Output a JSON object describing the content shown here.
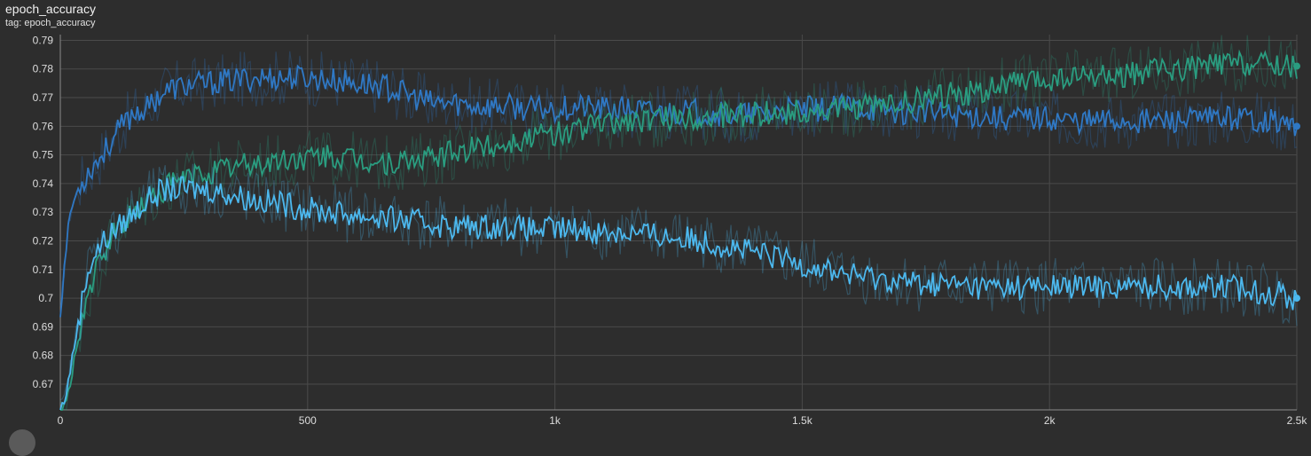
{
  "header": {
    "title": "epoch_accuracy",
    "subtitle": "tag: epoch_accuracy"
  },
  "chart_data": {
    "type": "line",
    "title": "epoch_accuracy",
    "subtitle": "tag: epoch_accuracy",
    "xlabel": "",
    "ylabel": "",
    "xlim": [
      0,
      2500
    ],
    "ylim": [
      0.661,
      0.792
    ],
    "x_ticks": [
      0,
      500,
      1000,
      1500,
      2000,
      2500
    ],
    "x_tick_labels": [
      "0",
      "500",
      "1k",
      "1.5k",
      "2k",
      "2.5k"
    ],
    "y_ticks": [
      0.67,
      0.68,
      0.69,
      0.7,
      0.71,
      0.72,
      0.73,
      0.74,
      0.75,
      0.76,
      0.77,
      0.78,
      0.79
    ],
    "y_tick_labels": [
      "0.67",
      "0.68",
      "0.69",
      "0.7",
      "0.71",
      "0.72",
      "0.73",
      "0.74",
      "0.75",
      "0.76",
      "0.77",
      "0.78",
      "0.79"
    ],
    "grid": true,
    "legend": "none",
    "series": [
      {
        "color": "#2f78c4",
        "x": [
          0,
          10,
          20,
          30,
          40,
          50,
          60,
          80,
          100,
          125,
          150,
          175,
          200,
          225,
          250,
          300,
          350,
          400,
          450,
          500,
          550,
          600,
          650,
          700,
          750,
          800,
          850,
          900,
          950,
          1000,
          1050,
          1100,
          1150,
          1200,
          1250,
          1300,
          1350,
          1400,
          1450,
          1500,
          1550,
          1600,
          1650,
          1700,
          1750,
          1800,
          1850,
          1900,
          1950,
          2000,
          2050,
          2100,
          2150,
          2200,
          2250,
          2300,
          2350,
          2400,
          2450,
          2500
        ],
        "y": [
          0.694,
          0.715,
          0.73,
          0.735,
          0.74,
          0.742,
          0.745,
          0.749,
          0.754,
          0.76,
          0.765,
          0.766,
          0.771,
          0.773,
          0.774,
          0.775,
          0.776,
          0.777,
          0.777,
          0.777,
          0.776,
          0.775,
          0.774,
          0.771,
          0.768,
          0.768,
          0.767,
          0.767,
          0.766,
          0.766,
          0.767,
          0.766,
          0.766,
          0.765,
          0.765,
          0.765,
          0.764,
          0.764,
          0.765,
          0.766,
          0.766,
          0.767,
          0.766,
          0.765,
          0.765,
          0.764,
          0.764,
          0.763,
          0.763,
          0.763,
          0.762,
          0.762,
          0.762,
          0.762,
          0.762,
          0.762,
          0.763,
          0.763,
          0.762,
          0.76
        ]
      },
      {
        "color": "#2a9d80",
        "x": [
          0,
          10,
          20,
          30,
          40,
          50,
          60,
          80,
          100,
          125,
          150,
          175,
          200,
          225,
          250,
          300,
          350,
          400,
          450,
          500,
          550,
          600,
          650,
          700,
          750,
          800,
          850,
          900,
          950,
          1000,
          1050,
          1100,
          1150,
          1200,
          1250,
          1300,
          1350,
          1400,
          1450,
          1500,
          1550,
          1600,
          1650,
          1700,
          1750,
          1800,
          1850,
          1900,
          1950,
          2000,
          2050,
          2100,
          2150,
          2200,
          2250,
          2300,
          2350,
          2400,
          2450,
          2500
        ],
        "y": [
          0.661,
          0.662,
          0.67,
          0.68,
          0.69,
          0.697,
          0.703,
          0.712,
          0.72,
          0.726,
          0.73,
          0.734,
          0.737,
          0.74,
          0.742,
          0.744,
          0.746,
          0.747,
          0.748,
          0.749,
          0.749,
          0.748,
          0.747,
          0.747,
          0.749,
          0.751,
          0.753,
          0.754,
          0.756,
          0.757,
          0.759,
          0.761,
          0.762,
          0.762,
          0.763,
          0.763,
          0.764,
          0.764,
          0.765,
          0.765,
          0.765,
          0.766,
          0.767,
          0.768,
          0.77,
          0.771,
          0.772,
          0.774,
          0.775,
          0.776,
          0.777,
          0.777,
          0.778,
          0.779,
          0.78,
          0.781,
          0.782,
          0.782,
          0.782,
          0.781
        ]
      },
      {
        "color": "#4cb8ee",
        "x": [
          0,
          10,
          20,
          30,
          40,
          50,
          60,
          80,
          100,
          125,
          150,
          175,
          200,
          225,
          250,
          300,
          350,
          400,
          450,
          500,
          550,
          600,
          650,
          700,
          750,
          800,
          850,
          900,
          950,
          1000,
          1050,
          1100,
          1150,
          1200,
          1250,
          1300,
          1350,
          1400,
          1450,
          1500,
          1550,
          1600,
          1650,
          1700,
          1750,
          1800,
          1850,
          1900,
          1950,
          2000,
          2050,
          2100,
          2150,
          2200,
          2250,
          2300,
          2350,
          2400,
          2450,
          2500
        ],
        "y": [
          0.661,
          0.665,
          0.675,
          0.685,
          0.695,
          0.705,
          0.712,
          0.718,
          0.722,
          0.726,
          0.73,
          0.734,
          0.737,
          0.738,
          0.738,
          0.738,
          0.736,
          0.734,
          0.733,
          0.731,
          0.73,
          0.729,
          0.728,
          0.727,
          0.726,
          0.725,
          0.725,
          0.725,
          0.724,
          0.724,
          0.724,
          0.723,
          0.723,
          0.722,
          0.721,
          0.72,
          0.718,
          0.716,
          0.714,
          0.712,
          0.71,
          0.708,
          0.707,
          0.706,
          0.705,
          0.705,
          0.704,
          0.704,
          0.704,
          0.704,
          0.704,
          0.704,
          0.704,
          0.704,
          0.704,
          0.704,
          0.704,
          0.703,
          0.702,
          0.7
        ]
      }
    ]
  }
}
